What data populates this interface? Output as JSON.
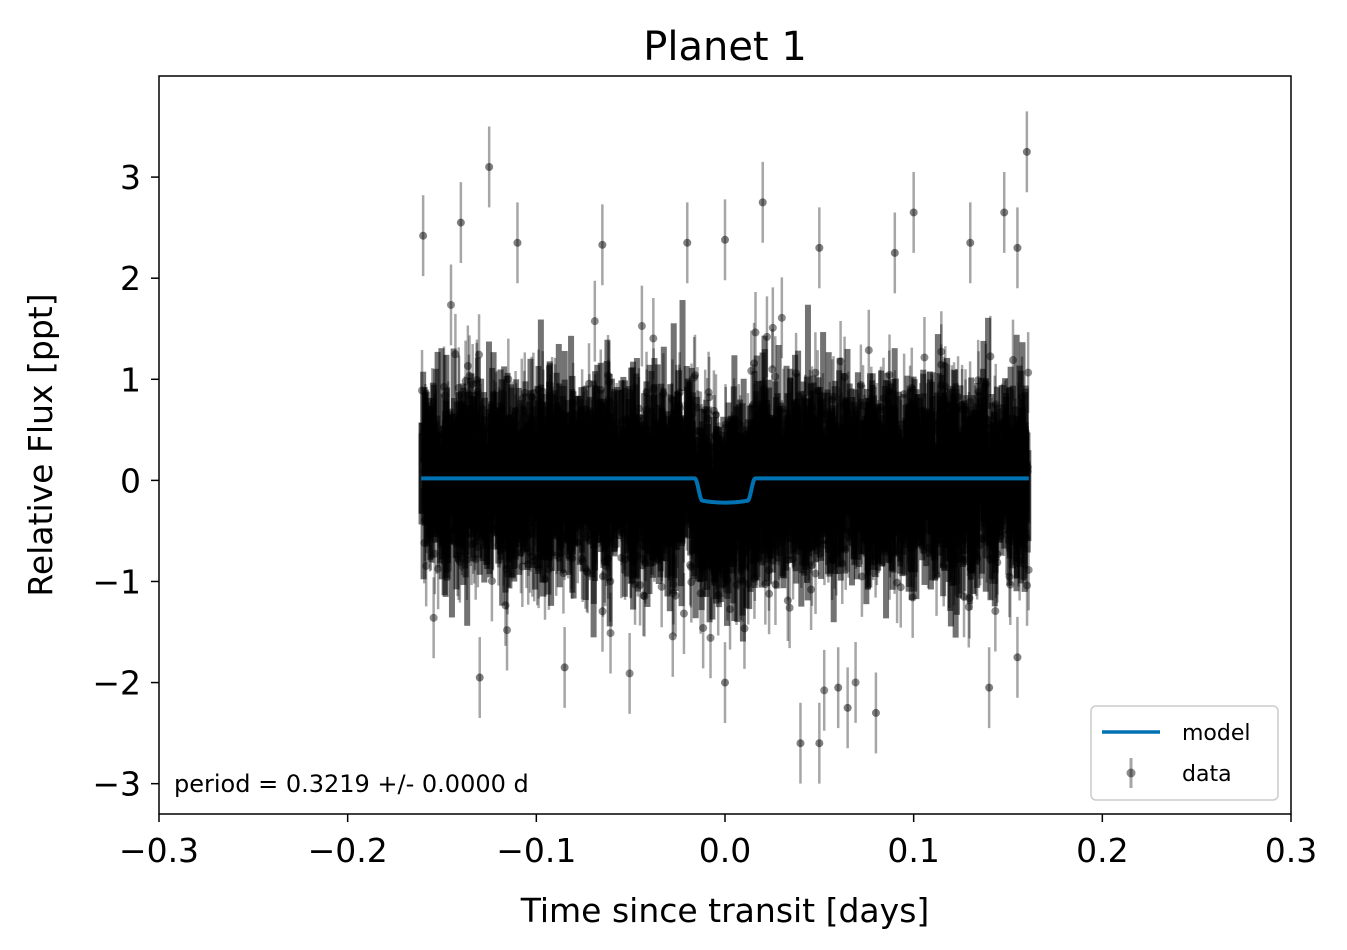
{
  "chart_data": {
    "type": "scatter",
    "title": "Planet 1",
    "xlabel": "Time since transit [days]",
    "ylabel": "Relative Flux [ppt]",
    "xlim": [
      -0.3,
      0.3
    ],
    "ylim": [
      -3.3,
      4.0
    ],
    "xticks": [
      -0.3,
      -0.2,
      -0.1,
      0.0,
      0.1,
      0.2,
      0.3
    ],
    "xtick_labels": [
      "−0.3",
      "−0.2",
      "−0.1",
      "0.0",
      "0.1",
      "0.2",
      "0.3"
    ],
    "yticks": [
      3,
      2,
      1,
      0,
      -1,
      -2,
      -3
    ],
    "ytick_labels": [
      "3",
      "2",
      "1",
      "0",
      "−1",
      "−2",
      "−3"
    ],
    "annotation": "period = 0.3219 +/- 0.0000 d",
    "grid": false,
    "legend_position": "lower-right",
    "series": [
      {
        "name": "model",
        "kind": "line",
        "color": "#0072b2",
        "baseline": 0.02,
        "transit_depth": -0.22,
        "transit_center": 0.0,
        "transit_half_width": 0.016,
        "x_range": [
          -0.161,
          0.161
        ]
      },
      {
        "name": "data",
        "kind": "errorbar",
        "color": "#000000",
        "alpha": 0.3,
        "yerr": 0.4,
        "x_range": [
          -0.161,
          0.161
        ],
        "scatter_std": 0.5,
        "outliers": [
          {
            "x": -0.125,
            "y": 3.1
          },
          {
            "x": 0.16,
            "y": 3.25
          },
          {
            "x": 0.02,
            "y": 2.75
          },
          {
            "x": 0.1,
            "y": 2.65
          },
          {
            "x": 0.148,
            "y": 2.65
          },
          {
            "x": -0.16,
            "y": 2.42
          },
          {
            "x": -0.14,
            "y": 2.55
          },
          {
            "x": -0.11,
            "y": 2.35
          },
          {
            "x": -0.065,
            "y": 2.33
          },
          {
            "x": 0.0,
            "y": 2.38
          },
          {
            "x": 0.13,
            "y": 2.35
          },
          {
            "x": 0.05,
            "y": 2.3
          },
          {
            "x": -0.02,
            "y": 2.35
          },
          {
            "x": 0.09,
            "y": 2.25
          },
          {
            "x": 0.155,
            "y": 2.3
          },
          {
            "x": 0.04,
            "y": -2.6
          },
          {
            "x": 0.05,
            "y": -2.6
          },
          {
            "x": 0.065,
            "y": -2.25
          },
          {
            "x": 0.08,
            "y": -2.3
          },
          {
            "x": 0.14,
            "y": -2.05
          },
          {
            "x": 0.0,
            "y": -2.0
          },
          {
            "x": -0.085,
            "y": -1.85
          },
          {
            "x": -0.13,
            "y": -1.95
          },
          {
            "x": 0.06,
            "y": -2.05
          },
          {
            "x": 0.155,
            "y": -1.75
          }
        ]
      }
    ]
  }
}
